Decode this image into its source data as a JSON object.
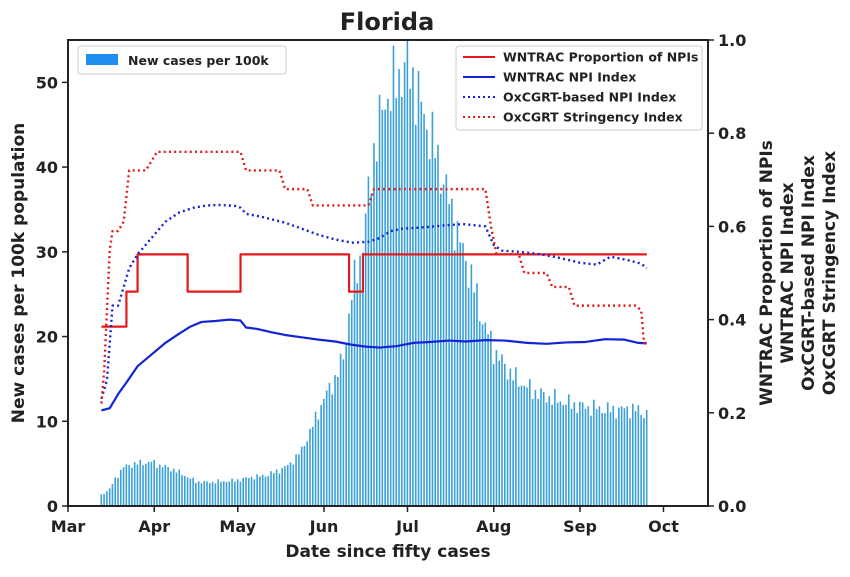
{
  "chart_data": {
    "type": "bar+line",
    "title": "Florida",
    "xlabel": "Date since fifty cases",
    "ylabel_left": "New cases per 100k population",
    "ylabel_right": [
      "WNTRAC Proportion of NPIs",
      "WNTRAC NPI Index",
      "OxCGRT-based NPI Index",
      "OxCGRT Stringency Index"
    ],
    "x_ticks": [
      {
        "label": "Mar",
        "day": 0
      },
      {
        "label": "Apr",
        "day": 31
      },
      {
        "label": "May",
        "day": 61
      },
      {
        "label": "Jun",
        "day": 92
      },
      {
        "label": "Jul",
        "day": 122
      },
      {
        "label": "Aug",
        "day": 153
      },
      {
        "label": "Sep",
        "day": 184
      },
      {
        "label": "Oct",
        "day": 214
      }
    ],
    "xlim_days": [
      0,
      230
    ],
    "ylim_left": [
      0,
      55
    ],
    "yticks_left": [
      "0",
      "10",
      "20",
      "30",
      "40",
      "50"
    ],
    "ylim_right": [
      0,
      1.0
    ],
    "yticks_right": [
      "0.0",
      "0.2",
      "0.4",
      "0.6",
      "0.8",
      "1.0"
    ],
    "legend_left": {
      "label": "New cases per 100k",
      "color": "#1f8ef1",
      "placement": "top-left"
    },
    "bars": {
      "name": "New cases per 100k",
      "color": "#3aa0d8",
      "start_day": 12,
      "anchors": [
        [
          12,
          1.3
        ],
        [
          15,
          2
        ],
        [
          17,
          3.2
        ],
        [
          20,
          4.6
        ],
        [
          23,
          4.9
        ],
        [
          27,
          5.1
        ],
        [
          30,
          5.2
        ],
        [
          33,
          4.8
        ],
        [
          38,
          4.3
        ],
        [
          42,
          3.6
        ],
        [
          46,
          2.9
        ],
        [
          50,
          2.8
        ],
        [
          55,
          2.9
        ],
        [
          60,
          3.0
        ],
        [
          66,
          3.4
        ],
        [
          71,
          3.6
        ],
        [
          76,
          4.2
        ],
        [
          80,
          5.0
        ],
        [
          84,
          6.6
        ],
        [
          88,
          9.5
        ],
        [
          92,
          12.7
        ],
        [
          96,
          15.0
        ],
        [
          99,
          17.5
        ],
        [
          102,
          25.0
        ],
        [
          106,
          31.0
        ],
        [
          110,
          42.0
        ],
        [
          114,
          48.0
        ],
        [
          118,
          50.0
        ],
        [
          121,
          52.0
        ],
        [
          124,
          50.5
        ],
        [
          128,
          46.0
        ],
        [
          132,
          42.0
        ],
        [
          137,
          36.0
        ],
        [
          141,
          31.0
        ],
        [
          145,
          27.0
        ],
        [
          149,
          22.0
        ],
        [
          153,
          18.5
        ],
        [
          157,
          16.5
        ],
        [
          161,
          15.0
        ],
        [
          166,
          13.8
        ],
        [
          171,
          13.0
        ],
        [
          176,
          12.5
        ],
        [
          181,
          12.0
        ],
        [
          186,
          11.7
        ],
        [
          191,
          11.5
        ],
        [
          196,
          11.3
        ],
        [
          201,
          11.5
        ],
        [
          205,
          11.3
        ],
        [
          208,
          10.8
        ]
      ]
    },
    "legend_right_placement": "top-right",
    "series": [
      {
        "name": "WNTRAC Proportion of NPIs",
        "color": "#e31a1c",
        "style": "solid",
        "points": [
          [
            12,
            0.385
          ],
          [
            21,
            0.385
          ],
          [
            21,
            0.46
          ],
          [
            25,
            0.46
          ],
          [
            25,
            0.54
          ],
          [
            43,
            0.54
          ],
          [
            43,
            0.46
          ],
          [
            62,
            0.46
          ],
          [
            62,
            0.54
          ],
          [
            101,
            0.54
          ],
          [
            101,
            0.46
          ],
          [
            106,
            0.46
          ],
          [
            106,
            0.54
          ],
          [
            208,
            0.54
          ]
        ]
      },
      {
        "name": "WNTRAC NPI Index",
        "color": "#1424d4",
        "style": "solid",
        "points": [
          [
            12,
            0.205
          ],
          [
            15,
            0.21
          ],
          [
            18,
            0.24
          ],
          [
            21,
            0.265
          ],
          [
            25,
            0.3
          ],
          [
            30,
            0.325
          ],
          [
            35,
            0.35
          ],
          [
            40,
            0.37
          ],
          [
            44,
            0.385
          ],
          [
            48,
            0.395
          ],
          [
            53,
            0.397
          ],
          [
            58,
            0.4
          ],
          [
            62,
            0.398
          ],
          [
            64,
            0.383
          ],
          [
            68,
            0.38
          ],
          [
            73,
            0.373
          ],
          [
            78,
            0.367
          ],
          [
            84,
            0.362
          ],
          [
            90,
            0.357
          ],
          [
            96,
            0.353
          ],
          [
            102,
            0.346
          ],
          [
            107,
            0.342
          ],
          [
            112,
            0.34
          ],
          [
            118,
            0.343
          ],
          [
            124,
            0.35
          ],
          [
            130,
            0.352
          ],
          [
            137,
            0.355
          ],
          [
            143,
            0.353
          ],
          [
            150,
            0.356
          ],
          [
            157,
            0.355
          ],
          [
            165,
            0.35
          ],
          [
            172,
            0.348
          ],
          [
            179,
            0.351
          ],
          [
            186,
            0.352
          ],
          [
            193,
            0.358
          ],
          [
            200,
            0.357
          ],
          [
            205,
            0.35
          ],
          [
            208,
            0.349
          ]
        ]
      },
      {
        "name": "OxCGRT-based NPI Index",
        "color": "#1424d4",
        "style": "dotted",
        "points": [
          [
            12,
            0.23
          ],
          [
            14,
            0.27
          ],
          [
            16,
            0.43
          ],
          [
            18,
            0.43
          ],
          [
            20,
            0.47
          ],
          [
            22,
            0.51
          ],
          [
            25,
            0.54
          ],
          [
            30,
            0.575
          ],
          [
            35,
            0.61
          ],
          [
            40,
            0.63
          ],
          [
            45,
            0.64
          ],
          [
            50,
            0.645
          ],
          [
            55,
            0.646
          ],
          [
            60,
            0.644
          ],
          [
            62,
            0.64
          ],
          [
            64,
            0.627
          ],
          [
            70,
            0.62
          ],
          [
            78,
            0.608
          ],
          [
            84,
            0.595
          ],
          [
            90,
            0.582
          ],
          [
            96,
            0.572
          ],
          [
            102,
            0.565
          ],
          [
            108,
            0.567
          ],
          [
            112,
            0.575
          ],
          [
            116,
            0.59
          ],
          [
            120,
            0.595
          ],
          [
            128,
            0.598
          ],
          [
            135,
            0.602
          ],
          [
            142,
            0.605
          ],
          [
            150,
            0.6
          ],
          [
            153,
            0.56
          ],
          [
            156,
            0.548
          ],
          [
            163,
            0.545
          ],
          [
            170,
            0.54
          ],
          [
            177,
            0.532
          ],
          [
            184,
            0.522
          ],
          [
            190,
            0.518
          ],
          [
            195,
            0.535
          ],
          [
            201,
            0.528
          ],
          [
            206,
            0.52
          ],
          [
            208,
            0.51
          ]
        ]
      },
      {
        "name": "OxCGRT Stringency Index",
        "color": "#e31a1c",
        "style": "dotted",
        "points": [
          [
            12,
            0.22
          ],
          [
            13,
            0.29
          ],
          [
            15,
            0.55
          ],
          [
            16,
            0.59
          ],
          [
            18,
            0.59
          ],
          [
            19,
            0.6
          ],
          [
            20,
            0.61
          ],
          [
            22,
            0.72
          ],
          [
            28,
            0.72
          ],
          [
            30,
            0.74
          ],
          [
            32,
            0.76
          ],
          [
            62,
            0.76
          ],
          [
            64,
            0.72
          ],
          [
            76,
            0.72
          ],
          [
            78,
            0.68
          ],
          [
            86,
            0.68
          ],
          [
            88,
            0.645
          ],
          [
            108,
            0.645
          ],
          [
            110,
            0.68
          ],
          [
            150,
            0.68
          ],
          [
            152,
            0.6
          ],
          [
            154,
            0.54
          ],
          [
            162,
            0.54
          ],
          [
            164,
            0.5
          ],
          [
            172,
            0.5
          ],
          [
            174,
            0.47
          ],
          [
            180,
            0.47
          ],
          [
            182,
            0.43
          ],
          [
            204,
            0.43
          ],
          [
            206,
            0.42
          ],
          [
            207,
            0.35
          ],
          [
            208,
            0.35
          ]
        ]
      }
    ]
  }
}
